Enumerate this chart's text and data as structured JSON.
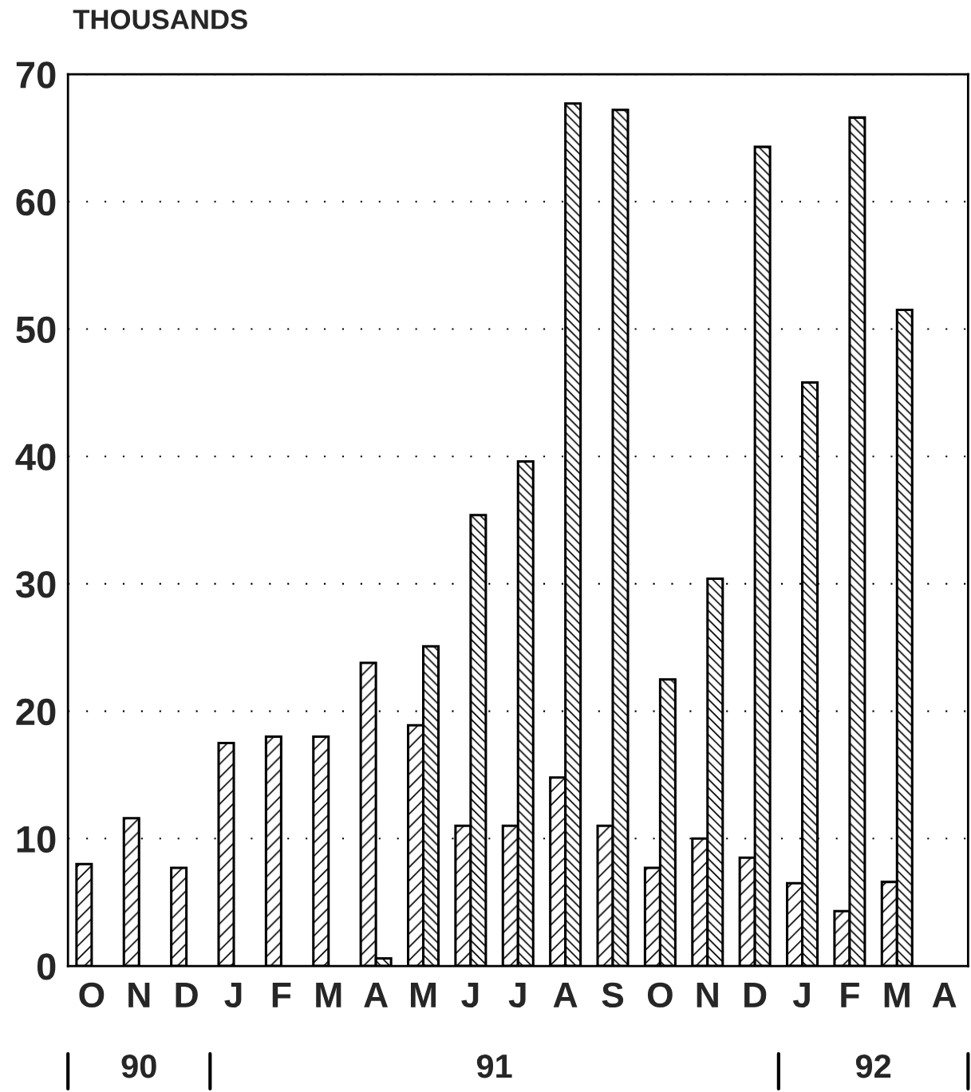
{
  "chart_data": {
    "type": "bar",
    "title": "THOUSANDS",
    "categories": [
      "O",
      "N",
      "D",
      "J",
      "F",
      "M",
      "A",
      "M",
      "J",
      "J",
      "A",
      "S",
      "O",
      "N",
      "D",
      "J",
      "F",
      "M",
      "A"
    ],
    "series": [
      {
        "color": "#000000",
        "values": [
          8.0,
          11.6,
          7.7,
          17.5,
          18.0,
          18.0,
          23.8,
          18.9,
          11.0,
          11.0,
          14.8,
          11.0,
          7.7,
          10.0,
          8.5,
          6.5,
          4.3,
          6.6,
          null
        ]
      },
      {
        "color": "#000000",
        "values": [
          null,
          null,
          null,
          null,
          null,
          null,
          0.6,
          25.1,
          35.4,
          39.6,
          67.7,
          67.2,
          22.5,
          30.4,
          64.3,
          45.8,
          66.6,
          51.5,
          null
        ]
      }
    ],
    "ylim": [
      0,
      70
    ],
    "yticks": [
      0,
      10,
      20,
      30,
      40,
      50,
      60,
      70
    ],
    "grid": "y",
    "annotations": [
      "90",
      "91",
      "92"
    ]
  }
}
